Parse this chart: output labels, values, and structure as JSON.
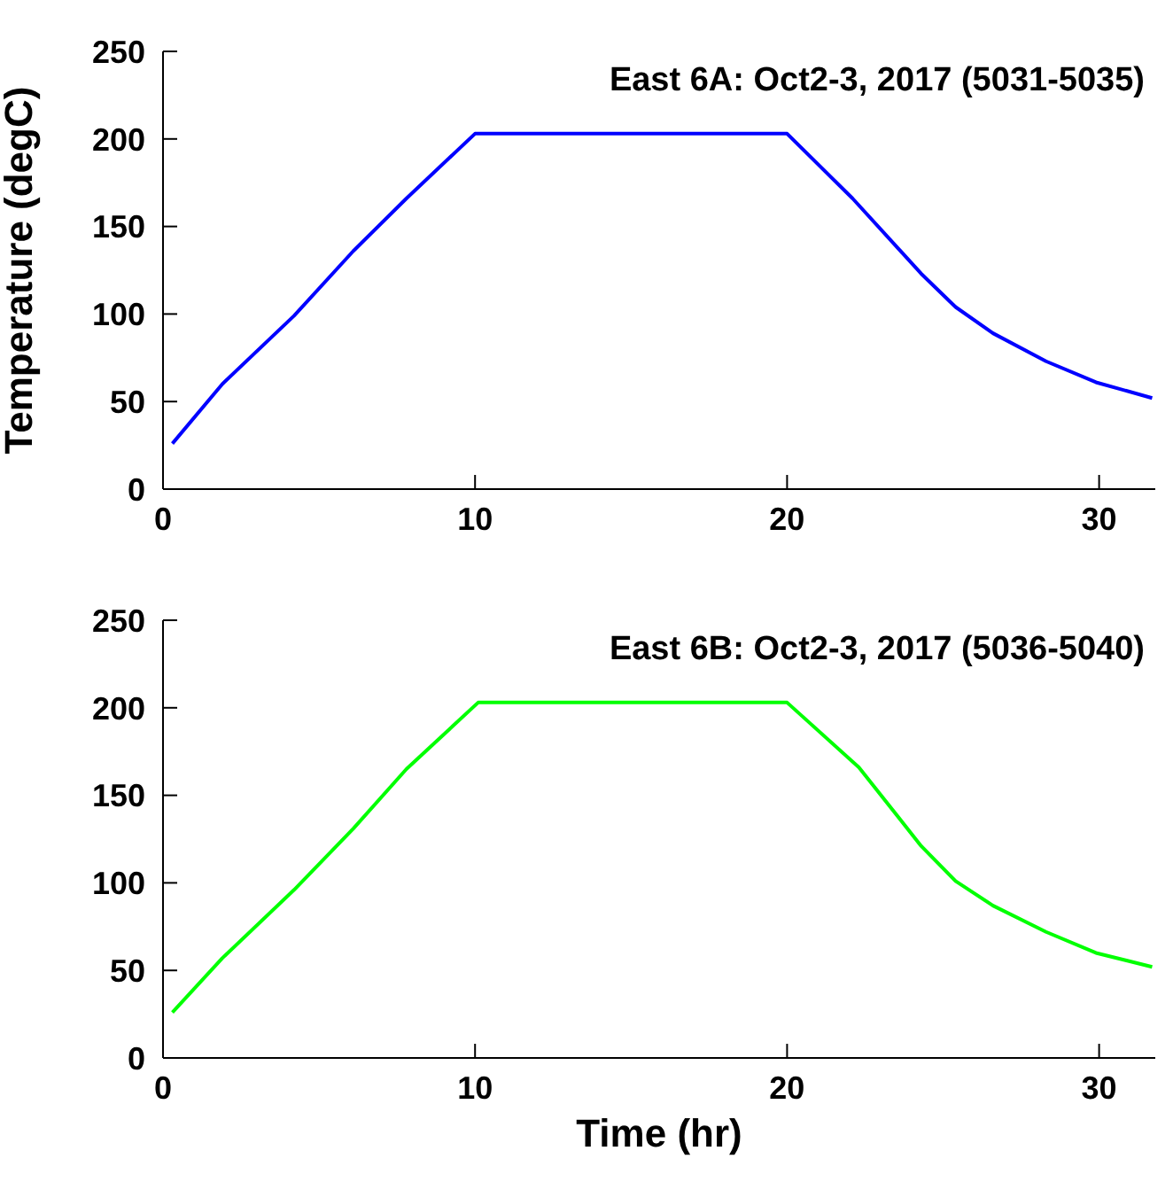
{
  "chart_data": [
    {
      "type": "line",
      "title": "East 6A: Oct2-3, 2017 (5031-5035)",
      "ylabel": "Temperature (degC)",
      "x": [
        0.3,
        1.9,
        4.2,
        6.1,
        7.8,
        10.0,
        20.0,
        22.1,
        24.3,
        25.4,
        26.6,
        28.3,
        29.9,
        31.7
      ],
      "xlim": [
        0,
        31.8
      ],
      "xticks": [
        0,
        10,
        20,
        30
      ],
      "ylim": [
        0,
        250
      ],
      "yticks": [
        0,
        50,
        100,
        150,
        200,
        250
      ],
      "grid": false,
      "marker": "none",
      "line_style": "solid",
      "series": [
        {
          "color": "#0000ff",
          "values": [
            26,
            60,
            99,
            136,
            166,
            203,
            203,
            166,
            123,
            104,
            89,
            73,
            61,
            52
          ]
        }
      ]
    },
    {
      "type": "line",
      "title": "East 6B: Oct2-3, 2017 (5036-5040)",
      "xlabel": "Time (hr)",
      "x": [
        0.3,
        1.9,
        4.2,
        6.1,
        7.8,
        10.1,
        20.0,
        22.3,
        24.3,
        25.4,
        26.6,
        28.3,
        29.9,
        31.7
      ],
      "xlim": [
        0,
        31.8
      ],
      "xticks": [
        0,
        10,
        20,
        30
      ],
      "ylim": [
        0,
        250
      ],
      "yticks": [
        0,
        50,
        100,
        150,
        200,
        250
      ],
      "grid": false,
      "marker": "none",
      "line_style": "solid",
      "series": [
        {
          "color": "#00ff00",
          "values": [
            26,
            57,
            96,
            131,
            165,
            203,
            203,
            166,
            121,
            101,
            87,
            72,
            60,
            52
          ]
        }
      ]
    }
  ]
}
